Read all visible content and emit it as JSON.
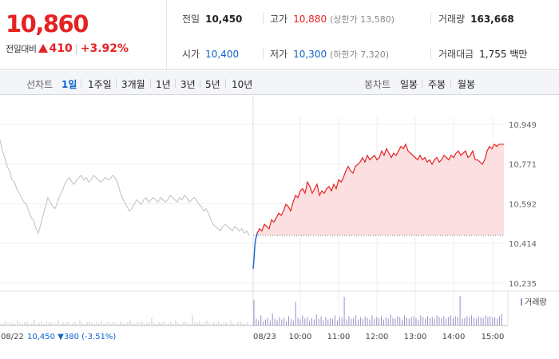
{
  "quote": {
    "current_price": "10,860",
    "change_label": "전일대비",
    "change_amount": "410",
    "change_percent": "+3.92%",
    "change_direction": "up"
  },
  "stats": {
    "prev_close_label": "전일",
    "prev_close": "10,450",
    "high_label": "고가",
    "high": "10,880",
    "upper_limit": "(상한가 13,580)",
    "volume_label": "거래량",
    "volume": "163,668",
    "open_label": "시가",
    "open": "10,400",
    "low_label": "저가",
    "low": "10,300",
    "lower_limit": "(하한가 7,320)",
    "trade_value_label": "거래대금",
    "trade_value": "1,755 백만"
  },
  "tabs": {
    "line_chart_label": "선차트",
    "periods": [
      "1일",
      "1주일",
      "3개월",
      "1년",
      "3년",
      "5년",
      "10년"
    ],
    "active_period": "1일",
    "candle_chart_label": "봉차트",
    "candles": [
      "일봉",
      "주봉",
      "월봉"
    ]
  },
  "colors": {
    "up": "#e52222",
    "down": "#1162cc",
    "prev_day_line": "#c9c9c9",
    "fill": "#fbd7d9",
    "volume": "#9a8fc7",
    "volume_prev": "#c9c9c9"
  },
  "chart_data": {
    "type": "line",
    "ylim": [
      10235,
      10949
    ],
    "y_ticks": [
      "10,949",
      "10,771",
      "10,592",
      "10,414",
      "10,235"
    ],
    "y_tick_values": [
      10949,
      10771,
      10592,
      10414,
      10235
    ],
    "baseline": 10450,
    "x_categories": [
      "08/22",
      "08/23",
      "10:00",
      "11:00",
      "12:00",
      "13:00",
      "14:00",
      "15:00"
    ],
    "volume_legend": "거래량",
    "prev_day_summary": {
      "date": "08/22",
      "close": "10,450",
      "arrow": "▼",
      "change": "380",
      "percent": "(-3.51%)"
    },
    "series": [
      {
        "name": "08/22",
        "x": [
          0,
          3,
          6,
          9,
          12,
          15,
          18,
          21,
          24,
          27,
          30,
          33,
          36,
          39,
          42,
          45,
          48,
          51,
          54,
          57,
          60,
          63,
          66,
          69,
          72,
          75,
          78,
          81,
          84,
          87,
          90,
          93,
          96,
          99,
          102,
          105,
          108,
          111,
          114,
          117,
          120,
          123,
          126,
          129,
          132,
          135,
          138,
          141,
          144,
          147,
          150,
          153,
          156,
          159,
          162,
          165,
          168,
          171,
          174,
          177,
          180,
          183,
          186,
          189,
          192,
          195,
          198,
          201,
          204,
          207,
          210,
          213,
          216,
          219,
          222,
          225,
          228,
          231,
          234,
          237,
          240,
          243,
          246,
          249,
          252,
          255,
          258,
          261,
          264,
          267,
          270,
          273,
          276,
          279,
          282,
          285,
          288,
          291,
          294,
          297,
          300,
          303,
          306,
          309,
          312
        ],
        "values": [
          10880,
          10830,
          10800,
          10760,
          10740,
          10700,
          10690,
          10660,
          10640,
          10620,
          10600,
          10590,
          10560,
          10530,
          10520,
          10480,
          10460,
          10500,
          10540,
          10580,
          10620,
          10600,
          10580,
          10570,
          10600,
          10630,
          10650,
          10680,
          10700,
          10710,
          10690,
          10680,
          10700,
          10710,
          10720,
          10700,
          10710,
          10690,
          10700,
          10720,
          10710,
          10700,
          10690,
          10700,
          10710,
          10700,
          10705,
          10720,
          10710,
          10690,
          10650,
          10620,
          10600,
          10580,
          10560,
          10570,
          10590,
          10610,
          10600,
          10590,
          10610,
          10620,
          10600,
          10610,
          10620,
          10610,
          10600,
          10620,
          10610,
          10600,
          10610,
          10630,
          10620,
          10610,
          10600,
          10620,
          10610,
          10630,
          10620,
          10600,
          10610,
          10620,
          10610,
          10590,
          10580,
          10560,
          10570,
          10550,
          10520,
          10500,
          10490,
          10480,
          10470,
          10490,
          10500,
          10490,
          10480,
          10470,
          10490,
          10480,
          10470,
          10480,
          10460,
          10470,
          10450
        ]
      },
      {
        "name": "08/23",
        "x": [
          317,
          318,
          319,
          320,
          322,
          325,
          328,
          331,
          334,
          337,
          340,
          343,
          346,
          349,
          352,
          355,
          358,
          361,
          364,
          367,
          370,
          373,
          376,
          379,
          382,
          385,
          388,
          391,
          394,
          397,
          400,
          403,
          406,
          409,
          412,
          415,
          418,
          421,
          424,
          427,
          430,
          433,
          436,
          439,
          442,
          445,
          448,
          451,
          454,
          457,
          460,
          463,
          466,
          469,
          472,
          475,
          478,
          481,
          484,
          487,
          490,
          493,
          496,
          499,
          502,
          505,
          508,
          511,
          514,
          517,
          520,
          523,
          526,
          529,
          532,
          535,
          538,
          541,
          544,
          547,
          550,
          553,
          556,
          559,
          562,
          565,
          568,
          571,
          574,
          577,
          580,
          583,
          586,
          589,
          592,
          595,
          598,
          601,
          604,
          607,
          610,
          613,
          616,
          619,
          622,
          625,
          628,
          631
        ],
        "values": [
          10300,
          10340,
          10400,
          10430,
          10460,
          10480,
          10470,
          10500,
          10490,
          10480,
          10520,
          10510,
          10530,
          10550,
          10540,
          10560,
          10590,
          10580,
          10560,
          10600,
          10630,
          10620,
          10650,
          10660,
          10640,
          10690,
          10670,
          10640,
          10660,
          10680,
          10630,
          10650,
          10640,
          10660,
          10670,
          10650,
          10680,
          10660,
          10700,
          10690,
          10710,
          10740,
          10760,
          10740,
          10730,
          10760,
          10770,
          10780,
          10800,
          10780,
          10810,
          10790,
          10800,
          10810,
          10790,
          10800,
          10830,
          10810,
          10840,
          10820,
          10800,
          10820,
          10810,
          10830,
          10850,
          10840,
          10860,
          10830,
          10820,
          10810,
          10800,
          10790,
          10810,
          10790,
          10800,
          10780,
          10790,
          10770,
          10790,
          10800,
          10780,
          10790,
          10810,
          10800,
          10790,
          10810,
          10800,
          10820,
          10830,
          10810,
          10820,
          10830,
          10800,
          10810,
          10830,
          10790,
          10790,
          10780,
          10770,
          10790,
          10830,
          10850,
          10840,
          10860,
          10850,
          10860,
          10860,
          10860
        ]
      }
    ],
    "volume_series": {
      "prev": [
        2,
        3,
        5,
        2,
        4,
        3,
        2,
        6,
        3,
        2,
        4,
        5,
        2,
        3,
        7,
        2,
        3,
        4,
        2,
        5,
        3,
        4,
        2,
        3,
        6,
        2,
        4,
        3,
        5,
        2,
        3,
        4,
        2,
        6,
        3,
        2,
        4,
        5,
        3,
        2,
        4,
        3,
        6,
        2,
        3,
        5,
        2,
        4,
        3,
        2,
        5,
        3,
        2,
        4,
        6,
        3,
        2,
        4,
        3,
        5,
        2,
        3,
        4,
        9,
        3,
        2,
        4,
        3,
        5,
        2,
        3,
        4,
        2,
        6,
        3,
        2,
        4,
        5,
        3,
        2,
        12,
        4,
        3,
        5,
        2,
        4,
        6,
        3,
        2,
        4,
        3,
        5,
        2,
        3,
        4,
        2,
        6,
        3,
        2,
        4,
        5,
        3,
        2,
        4
      ],
      "today": [
        30,
        8,
        6,
        12,
        5,
        7,
        9,
        6,
        14,
        8,
        6,
        10,
        7,
        9,
        5,
        11,
        8,
        6,
        28,
        9,
        7,
        12,
        8,
        10,
        6,
        9,
        7,
        13,
        8,
        11,
        6,
        10,
        7,
        9,
        8,
        12,
        6,
        10,
        9,
        34,
        7,
        11,
        8,
        9,
        12,
        7,
        10,
        8,
        11,
        9,
        7,
        12,
        8,
        10,
        9,
        11,
        7,
        10,
        8,
        13,
        9,
        8,
        11,
        10,
        7,
        12,
        9,
        8,
        10,
        11,
        9,
        7,
        12,
        10,
        8,
        11,
        9,
        10,
        8,
        12,
        10,
        9,
        11,
        8,
        10,
        12,
        9,
        11,
        10,
        35,
        8,
        9,
        11,
        10,
        12,
        9,
        8,
        11,
        10,
        9,
        12,
        10,
        11,
        9,
        10,
        8,
        11,
        14
      ]
    }
  }
}
